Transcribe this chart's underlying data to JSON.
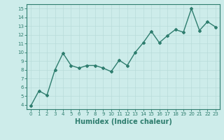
{
  "xlabel": "Humidex (Indice chaleur)",
  "ylabel": "",
  "x": [
    0,
    1,
    2,
    3,
    4,
    5,
    6,
    7,
    8,
    9,
    10,
    11,
    12,
    13,
    14,
    15,
    16,
    17,
    18,
    19,
    20,
    21,
    22,
    23
  ],
  "y": [
    3.9,
    5.6,
    5.1,
    8.0,
    9.9,
    8.5,
    8.2,
    8.5,
    8.5,
    8.2,
    7.8,
    9.1,
    8.5,
    10.0,
    11.1,
    12.4,
    11.1,
    11.9,
    12.6,
    12.3,
    15.0,
    12.5,
    13.5,
    12.9
  ],
  "line_color": "#2e7d6e",
  "marker": "D",
  "marker_size": 2,
  "bg_color": "#cdecea",
  "grid_color": "#b8dcd9",
  "ylim": [
    3.5,
    15.5
  ],
  "xlim": [
    -0.5,
    23.5
  ],
  "yticks": [
    4,
    5,
    6,
    7,
    8,
    9,
    10,
    11,
    12,
    13,
    14,
    15
  ],
  "xticks": [
    0,
    1,
    2,
    3,
    4,
    5,
    6,
    7,
    8,
    9,
    10,
    11,
    12,
    13,
    14,
    15,
    16,
    17,
    18,
    19,
    20,
    21,
    22,
    23
  ],
  "tick_fontsize": 5,
  "xlabel_fontsize": 7,
  "line_width": 1.0
}
